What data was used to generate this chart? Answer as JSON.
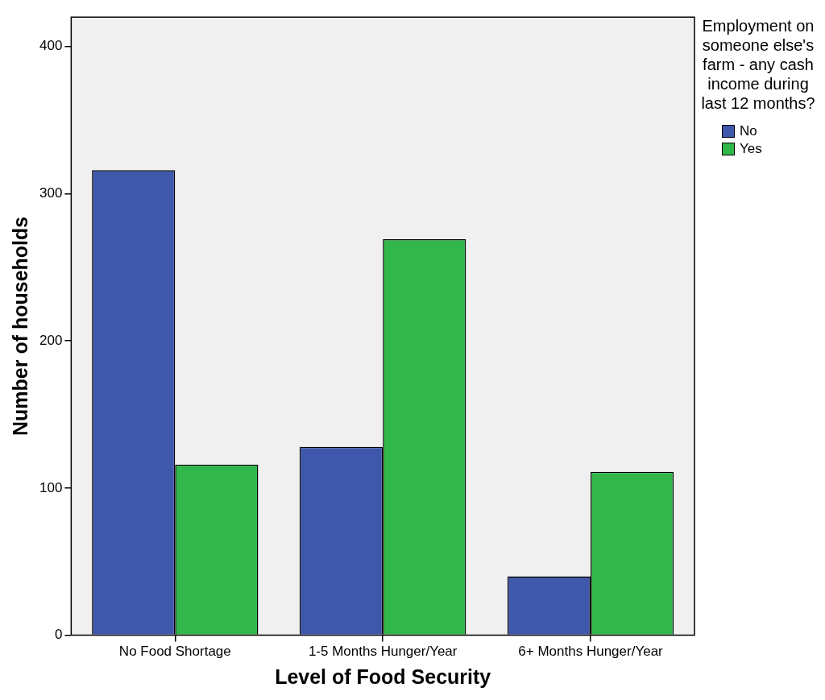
{
  "chart_data": {
    "type": "bar",
    "xlabel": "Level of Food Security",
    "ylabel": "Number of households",
    "legend_title": "Employment on someone else's farm - any cash income during last 12 months?",
    "categories": [
      "No Food Shortage",
      "1-5 Months Hunger/Year",
      "6+ Months Hunger/Year"
    ],
    "series": [
      {
        "name": "No",
        "color": "#3f58ab",
        "values": [
          316,
          128,
          40
        ]
      },
      {
        "name": "Yes",
        "color": "#31b74a",
        "values": [
          116,
          269,
          111
        ]
      }
    ],
    "ylim": [
      0,
      420
    ],
    "yticks": [
      0,
      100,
      200,
      300,
      400
    ],
    "grid": false,
    "legend": "right"
  }
}
